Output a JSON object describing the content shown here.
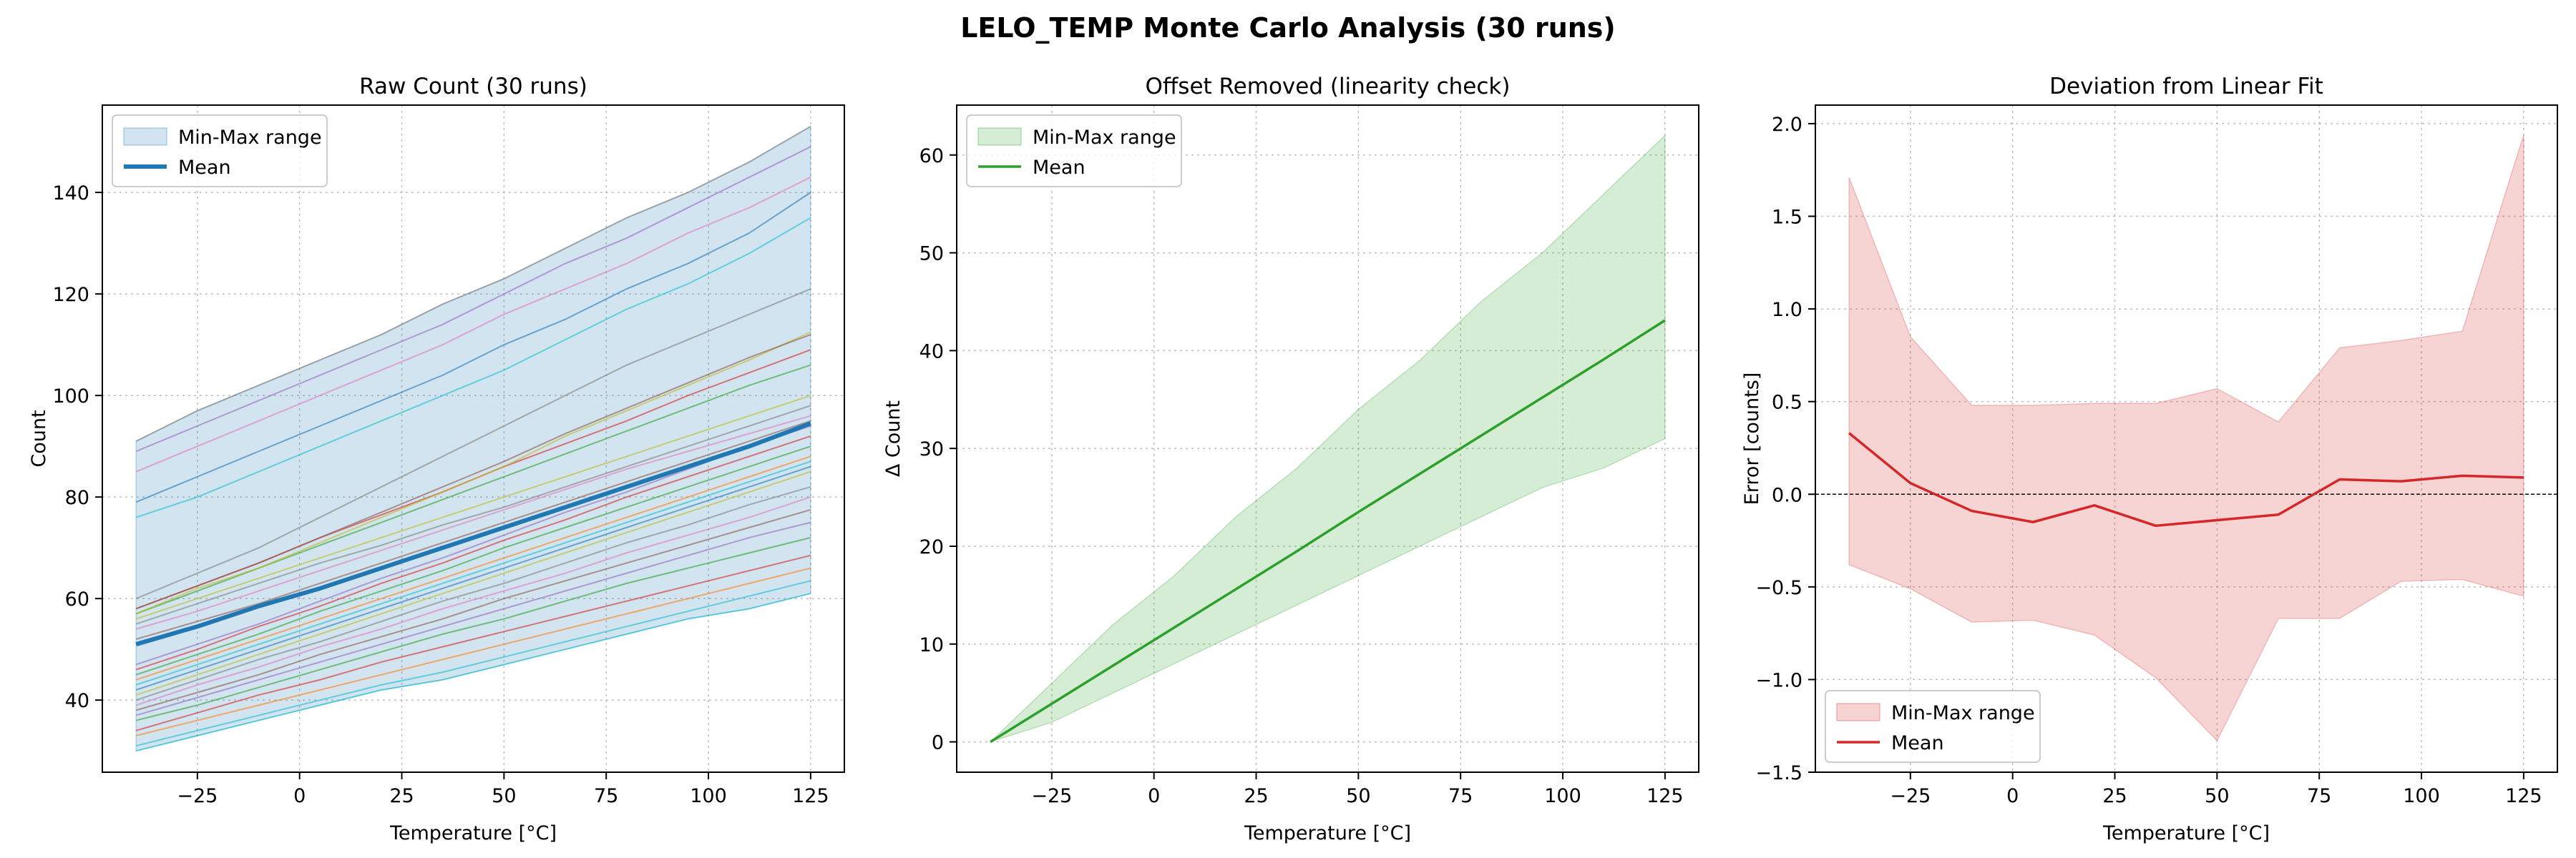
{
  "figure": {
    "title": "LELO_TEMP Monte Carlo Analysis (30 runs)"
  },
  "legend_labels": {
    "range": "Min-Max range",
    "mean": "Mean"
  },
  "chart_data": [
    {
      "type": "line",
      "title": "Raw Count (30 runs)",
      "xlabel": "Temperature [°C]",
      "ylabel": "Count",
      "xlim": [
        -48.25,
        133.25
      ],
      "ylim": [
        25.8,
        157.2
      ],
      "xticks": [
        -25,
        0,
        25,
        50,
        75,
        100,
        125
      ],
      "yticks": [
        40,
        60,
        80,
        100,
        120,
        140
      ],
      "grid": true,
      "legend_position": "upper left",
      "colors": {
        "band": "#1f77b4",
        "mean": "#1f77b4"
      },
      "x": [
        -40,
        -25,
        -10,
        5,
        20,
        35,
        50,
        65,
        80,
        95,
        110,
        125
      ],
      "band": {
        "min": [
          30,
          33,
          36,
          39,
          42,
          44,
          47,
          50,
          53,
          56,
          58,
          61
        ],
        "max": [
          91,
          97,
          102,
          107,
          112,
          118,
          123,
          129,
          135,
          140,
          146,
          153
        ]
      },
      "mean": [
        51,
        54.5,
        58.5,
        62,
        66,
        70,
        74,
        78,
        82,
        86,
        90,
        94.5
      ],
      "runs": [
        {
          "values": [
            30,
            33,
            36,
            39,
            42,
            44,
            47,
            50,
            53,
            56,
            58,
            61
          ],
          "color": "#17becf"
        },
        {
          "values": [
            31,
            34,
            37,
            40,
            43,
            45.5,
            48.5,
            51.5,
            54.5,
            57.5,
            60.5,
            63.5
          ],
          "color": "#17becf"
        },
        {
          "values": [
            33,
            36,
            39,
            42,
            45,
            48,
            51,
            54,
            57,
            60,
            63,
            66
          ],
          "color": "#ff7f0e"
        },
        {
          "values": [
            34,
            37.5,
            41,
            44,
            47.5,
            50.5,
            53.5,
            56.5,
            59.5,
            62.5,
            65.5,
            68.5
          ],
          "color": "#d62728"
        },
        {
          "values": [
            36,
            39,
            42.5,
            46,
            49.5,
            53,
            56,
            59.5,
            63,
            66,
            69,
            72
          ],
          "color": "#2ca02c"
        },
        {
          "values": [
            37,
            40.5,
            44,
            47.5,
            51,
            54.5,
            58,
            61.5,
            65,
            68.5,
            72,
            75
          ],
          "color": "#9467bd"
        },
        {
          "values": [
            38,
            41.5,
            45,
            49,
            52.5,
            56,
            60,
            63.5,
            67,
            70.5,
            74,
            77.5
          ],
          "color": "#8c564b"
        },
        {
          "values": [
            39,
            43,
            46.5,
            50.5,
            54,
            58,
            61.5,
            65,
            69,
            72.5,
            76,
            80
          ],
          "color": "#e377c2"
        },
        {
          "values": [
            40,
            44,
            48,
            51.5,
            55.5,
            59.5,
            63,
            67,
            71,
            74.5,
            78.5,
            82
          ],
          "color": "#7f7f7f"
        },
        {
          "values": [
            41,
            45,
            49,
            53,
            57,
            61,
            65,
            69,
            73,
            77,
            81,
            85
          ],
          "color": "#bcbd22"
        },
        {
          "values": [
            42,
            46,
            50,
            54,
            58,
            62,
            66,
            70,
            74,
            78,
            82,
            86
          ],
          "color": "#1f77b4"
        },
        {
          "values": [
            43,
            47,
            51,
            55,
            59,
            63,
            67,
            71,
            75,
            79,
            83,
            87
          ],
          "color": "#17becf"
        },
        {
          "values": [
            44,
            48,
            52,
            56,
            60,
            64,
            68,
            72,
            76,
            80,
            84,
            88
          ],
          "color": "#ff7f0e"
        },
        {
          "values": [
            45,
            49,
            53,
            57.5,
            61.5,
            65.5,
            70,
            74,
            78,
            82,
            86,
            90
          ],
          "color": "#2ca02c"
        },
        {
          "values": [
            46,
            50,
            54.5,
            58.5,
            63,
            67,
            71.5,
            75.5,
            80,
            84,
            88,
            92
          ],
          "color": "#d62728"
        },
        {
          "values": [
            47,
            51,
            55,
            59.5,
            64,
            68,
            72.5,
            77,
            81,
            85.5,
            90,
            94
          ],
          "color": "#9467bd"
        },
        {
          "values": [
            52,
            55.5,
            59,
            63,
            67,
            71,
            75,
            79,
            83,
            87,
            91,
            95
          ],
          "color": "#8c564b"
        },
        {
          "values": [
            54,
            57.5,
            61.5,
            65.5,
            69.5,
            73.5,
            77.5,
            81.5,
            85.5,
            89,
            92.5,
            96
          ],
          "color": "#e377c2"
        },
        {
          "values": [
            55,
            59,
            63,
            67,
            70.5,
            74.5,
            78,
            82,
            86,
            90,
            94,
            98
          ],
          "color": "#7f7f7f"
        },
        {
          "values": [
            56,
            60,
            64,
            68,
            72,
            76,
            80,
            84,
            88,
            92,
            96,
            100
          ],
          "color": "#bcbd22"
        },
        {
          "values": [
            57,
            61.5,
            66,
            70.5,
            75,
            79.5,
            84,
            88.5,
            93,
            97.5,
            102,
            106
          ],
          "color": "#2ca02c"
        },
        {
          "values": [
            58,
            62.5,
            67,
            72,
            76.5,
            81,
            86,
            90.5,
            95,
            100,
            104.5,
            109
          ],
          "color": "#d62728"
        },
        {
          "values": [
            57,
            62,
            66,
            71,
            76,
            81,
            86,
            92,
            97,
            102,
            107,
            112.5
          ],
          "color": "#bcbd22"
        },
        {
          "values": [
            58,
            62.5,
            67,
            72,
            77,
            82,
            87,
            92.5,
            97.5,
            102.5,
            107.5,
            112
          ],
          "color": "#8c564b"
        },
        {
          "values": [
            60,
            65,
            70,
            76,
            82,
            88,
            94,
            100,
            106,
            111,
            116,
            121
          ],
          "color": "#7f7f7f"
        },
        {
          "values": [
            76,
            80,
            85,
            90,
            95,
            100,
            105,
            111,
            117,
            122,
            128,
            135
          ],
          "color": "#17becf"
        },
        {
          "values": [
            79,
            84,
            89,
            94,
            99,
            104,
            110,
            115,
            121,
            126,
            132,
            140
          ],
          "color": "#1f77b4"
        },
        {
          "values": [
            85,
            90,
            95,
            100,
            105,
            110,
            116,
            121,
            126,
            132,
            137,
            143
          ],
          "color": "#e377c2"
        },
        {
          "values": [
            89,
            94,
            99,
            104,
            109,
            114,
            120,
            126,
            131,
            137,
            143,
            149
          ],
          "color": "#9467bd"
        },
        {
          "values": [
            91,
            97,
            102,
            107,
            112,
            118,
            123,
            129,
            135,
            140,
            146,
            153
          ],
          "color": "#7f7f7f"
        }
      ]
    },
    {
      "type": "area",
      "title": "Offset Removed (linearity check)",
      "xlabel": "Temperature [°C]",
      "ylabel": "Δ Count",
      "xlim": [
        -48.25,
        133.25
      ],
      "ylim": [
        -3.1,
        65.1
      ],
      "xticks": [
        -25,
        0,
        25,
        50,
        75,
        100,
        125
      ],
      "yticks": [
        0,
        10,
        20,
        30,
        40,
        50,
        60
      ],
      "grid": true,
      "legend_position": "upper left",
      "colors": {
        "band": "#2ca02c",
        "mean": "#2ca02c"
      },
      "x": [
        -40,
        -25,
        -10,
        5,
        20,
        35,
        50,
        65,
        80,
        95,
        110,
        125
      ],
      "band": {
        "min": [
          0,
          2,
          5,
          8,
          11,
          14,
          17,
          20,
          23,
          26,
          28,
          31
        ],
        "max": [
          0,
          6,
          12,
          17,
          23,
          28,
          34,
          39,
          45,
          50,
          56,
          62
        ]
      },
      "mean": [
        0,
        3.9,
        7.8,
        11.7,
        15.6,
        19.5,
        23.5,
        27.4,
        31.3,
        35.2,
        39.1,
        43.1
      ]
    },
    {
      "type": "line",
      "title": "Deviation from Linear Fit",
      "xlabel": "Temperature [°C]",
      "ylabel": "Error [counts]",
      "xlim": [
        -48.25,
        133.25
      ],
      "ylim": [
        -1.5,
        2.1
      ],
      "xticks": [
        -25,
        0,
        25,
        50,
        75,
        100,
        125
      ],
      "yticks": [
        -1.5,
        -1.0,
        -0.5,
        0.0,
        0.5,
        1.0,
        1.5,
        2.0
      ],
      "grid": true,
      "zero_line": true,
      "legend_position": "lower left",
      "colors": {
        "band": "#d62728",
        "mean": "#d62728"
      },
      "x": [
        -40,
        -25,
        -10,
        5,
        20,
        35,
        50,
        65,
        80,
        95,
        110,
        125
      ],
      "band": {
        "min": [
          -0.38,
          -0.51,
          -0.69,
          -0.68,
          -0.76,
          -0.99,
          -1.33,
          -0.67,
          -0.67,
          -0.47,
          -0.46,
          -0.55
        ],
        "max": [
          1.71,
          0.85,
          0.48,
          0.48,
          0.49,
          0.49,
          0.57,
          0.39,
          0.79,
          0.83,
          0.88,
          1.94
        ]
      },
      "mean": [
        0.33,
        0.06,
        -0.09,
        -0.15,
        -0.06,
        -0.17,
        -0.14,
        -0.11,
        0.08,
        0.07,
        0.1,
        0.09
      ]
    }
  ]
}
